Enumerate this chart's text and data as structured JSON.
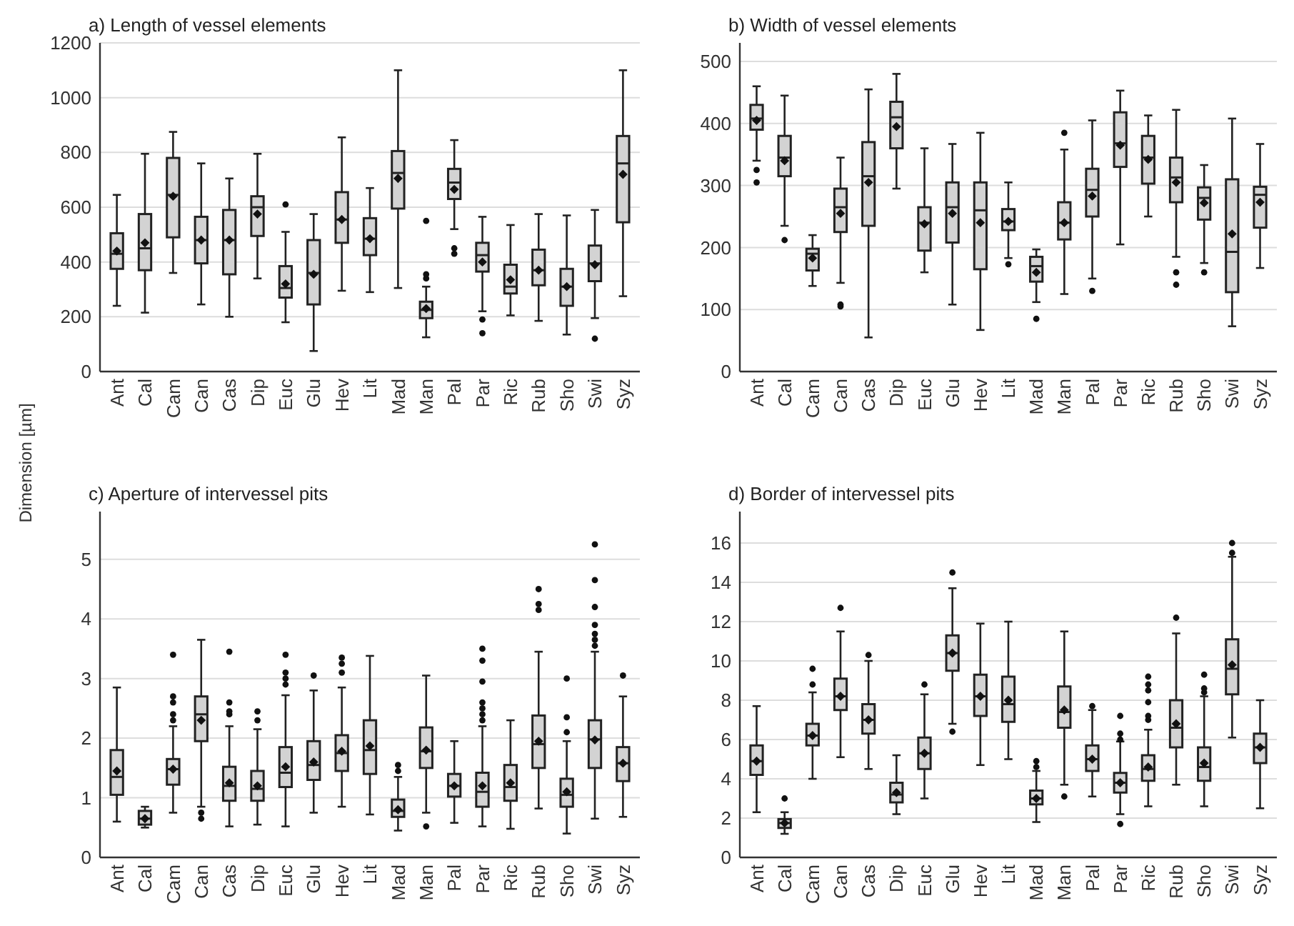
{
  "chart_data": [
    {
      "type": "box",
      "title": "a) Length of vessel elements",
      "ylabel": "Dimension [µm]",
      "categories": [
        "Ant",
        "Cal",
        "Cam",
        "Can",
        "Cas",
        "Dip",
        "Euc",
        "Glu",
        "Hev",
        "Lit",
        "Mad",
        "Man",
        "Pal",
        "Par",
        "Ric",
        "Rub",
        "Sho",
        "Swi",
        "Syz"
      ],
      "ylim": [
        0,
        1200
      ],
      "yticks": [
        0,
        200,
        400,
        600,
        800,
        1000,
        1200
      ],
      "grid": "y",
      "color": "#d3d3d3",
      "boxes": [
        {
          "low": 240,
          "q1": 375,
          "median": 430,
          "q3": 505,
          "high": 645,
          "mean": 440
        },
        {
          "low": 215,
          "q1": 370,
          "median": 450,
          "q3": 575,
          "high": 795,
          "mean": 470
        },
        {
          "low": 360,
          "q1": 490,
          "median": 645,
          "q3": 780,
          "high": 875,
          "mean": 640
        },
        {
          "low": 245,
          "q1": 395,
          "median": 480,
          "q3": 565,
          "high": 760,
          "mean": 480
        },
        {
          "low": 200,
          "q1": 355,
          "median": 480,
          "q3": 590,
          "high": 705,
          "mean": 480
        },
        {
          "low": 340,
          "q1": 495,
          "median": 600,
          "q3": 640,
          "high": 795,
          "mean": 575
        },
        {
          "low": 180,
          "q1": 270,
          "median": 305,
          "q3": 385,
          "high": 510,
          "mean": 320,
          "outliers": [
            610
          ]
        },
        {
          "low": 75,
          "q1": 245,
          "median": 360,
          "q3": 480,
          "high": 575,
          "mean": 355
        },
        {
          "low": 295,
          "q1": 470,
          "median": 555,
          "q3": 655,
          "high": 855,
          "mean": 555
        },
        {
          "low": 290,
          "q1": 425,
          "median": 485,
          "q3": 560,
          "high": 670,
          "mean": 485
        },
        {
          "low": 305,
          "q1": 595,
          "median": 725,
          "q3": 805,
          "high": 1100,
          "mean": 705
        },
        {
          "low": 125,
          "q1": 195,
          "median": 225,
          "q3": 255,
          "high": 310,
          "mean": 230,
          "outliers": [
            340,
            355,
            550
          ]
        },
        {
          "low": 520,
          "q1": 630,
          "median": 690,
          "q3": 740,
          "high": 845,
          "mean": 665,
          "outliers": [
            430,
            450
          ]
        },
        {
          "low": 220,
          "q1": 365,
          "median": 425,
          "q3": 470,
          "high": 565,
          "mean": 400,
          "outliers": [
            140,
            190
          ]
        },
        {
          "low": 205,
          "q1": 285,
          "median": 310,
          "q3": 390,
          "high": 535,
          "mean": 335
        },
        {
          "low": 185,
          "q1": 315,
          "median": 370,
          "q3": 445,
          "high": 575,
          "mean": 370
        },
        {
          "low": 135,
          "q1": 240,
          "median": 310,
          "q3": 375,
          "high": 570,
          "mean": 310
        },
        {
          "low": 195,
          "q1": 330,
          "median": 395,
          "q3": 460,
          "high": 590,
          "mean": 390,
          "outliers": [
            120
          ]
        },
        {
          "low": 275,
          "q1": 545,
          "median": 760,
          "q3": 860,
          "high": 1100,
          "mean": 720
        }
      ]
    },
    {
      "type": "box",
      "title": "b) Width of vessel elements",
      "categories": [
        "Ant",
        "Cal",
        "Cam",
        "Can",
        "Cas",
        "Dip",
        "Euc",
        "Glu",
        "Hev",
        "Lit",
        "Mad",
        "Man",
        "Pal",
        "Par",
        "Ric",
        "Rub",
        "Sho",
        "Swi",
        "Syz"
      ],
      "ylim": [
        0,
        530
      ],
      "yticks": [
        0,
        100,
        200,
        300,
        400,
        500
      ],
      "grid": "y",
      "color": "#d3d3d3",
      "boxes": [
        {
          "low": 340,
          "q1": 390,
          "median": 408,
          "q3": 430,
          "high": 460,
          "mean": 405,
          "outliers": [
            305,
            325
          ]
        },
        {
          "low": 235,
          "q1": 315,
          "median": 345,
          "q3": 380,
          "high": 445,
          "mean": 340,
          "outliers": [
            212
          ]
        },
        {
          "low": 138,
          "q1": 163,
          "median": 190,
          "q3": 198,
          "high": 220,
          "mean": 183
        },
        {
          "low": 143,
          "q1": 225,
          "median": 265,
          "q3": 295,
          "high": 345,
          "mean": 255,
          "outliers": [
            105,
            108
          ]
        },
        {
          "low": 55,
          "q1": 235,
          "median": 315,
          "q3": 370,
          "high": 455,
          "mean": 305
        },
        {
          "low": 295,
          "q1": 360,
          "median": 410,
          "q3": 435,
          "high": 480,
          "mean": 395
        },
        {
          "low": 160,
          "q1": 195,
          "median": 240,
          "q3": 265,
          "high": 360,
          "mean": 238
        },
        {
          "low": 108,
          "q1": 208,
          "median": 265,
          "q3": 305,
          "high": 367,
          "mean": 255
        },
        {
          "low": 67,
          "q1": 165,
          "median": 260,
          "q3": 305,
          "high": 385,
          "mean": 240
        },
        {
          "low": 183,
          "q1": 228,
          "median": 242,
          "q3": 262,
          "high": 305,
          "mean": 242,
          "outliers": [
            173
          ]
        },
        {
          "low": 112,
          "q1": 145,
          "median": 170,
          "q3": 185,
          "high": 197,
          "mean": 160,
          "outliers": [
            85
          ]
        },
        {
          "low": 125,
          "q1": 213,
          "median": 240,
          "q3": 273,
          "high": 358,
          "mean": 240,
          "outliers": [
            385
          ]
        },
        {
          "low": 150,
          "q1": 250,
          "median": 293,
          "q3": 327,
          "high": 405,
          "mean": 283,
          "outliers": [
            130
          ]
        },
        {
          "low": 205,
          "q1": 330,
          "median": 368,
          "q3": 418,
          "high": 453,
          "mean": 365
        },
        {
          "low": 250,
          "q1": 303,
          "median": 345,
          "q3": 380,
          "high": 413,
          "mean": 342
        },
        {
          "low": 185,
          "q1": 273,
          "median": 313,
          "q3": 345,
          "high": 422,
          "mean": 305,
          "outliers": [
            140,
            160
          ]
        },
        {
          "low": 175,
          "q1": 245,
          "median": 280,
          "q3": 297,
          "high": 333,
          "mean": 272,
          "outliers": [
            160
          ]
        },
        {
          "low": 73,
          "q1": 128,
          "median": 193,
          "q3": 310,
          "high": 408,
          "mean": 222
        },
        {
          "low": 167,
          "q1": 232,
          "median": 285,
          "q3": 298,
          "high": 367,
          "mean": 273
        }
      ]
    },
    {
      "type": "box",
      "title": "c) Aperture of intervessel pits",
      "categories": [
        "Ant",
        "Cal",
        "Cam",
        "Can",
        "Cas",
        "Dip",
        "Euc",
        "Glu",
        "Hev",
        "Lit",
        "Mad",
        "Man",
        "Pal",
        "Par",
        "Ric",
        "Rub",
        "Sho",
        "Swi",
        "Syz"
      ],
      "ylim": [
        0,
        5.8
      ],
      "yticks": [
        0,
        1,
        2,
        3,
        4,
        5
      ],
      "grid": "y",
      "color": "#d3d3d3",
      "boxes": [
        {
          "low": 0.6,
          "q1": 1.05,
          "median": 1.35,
          "q3": 1.8,
          "high": 2.85,
          "mean": 1.45
        },
        {
          "low": 0.5,
          "q1": 0.55,
          "median": 0.65,
          "q3": 0.78,
          "high": 0.85,
          "mean": 0.65
        },
        {
          "low": 0.75,
          "q1": 1.22,
          "median": 1.48,
          "q3": 1.65,
          "high": 2.2,
          "mean": 1.48,
          "outliers": [
            2.3,
            2.4,
            2.6,
            2.7,
            3.4
          ]
        },
        {
          "low": 0.85,
          "q1": 1.95,
          "median": 2.4,
          "q3": 2.7,
          "high": 3.65,
          "mean": 2.3,
          "outliers": [
            0.65,
            0.75
          ]
        },
        {
          "low": 0.52,
          "q1": 0.95,
          "median": 1.2,
          "q3": 1.52,
          "high": 2.2,
          "mean": 1.25,
          "outliers": [
            2.4,
            2.45,
            2.6,
            3.45
          ]
        },
        {
          "low": 0.55,
          "q1": 0.95,
          "median": 1.15,
          "q3": 1.45,
          "high": 2.15,
          "mean": 1.2,
          "outliers": [
            2.3,
            2.45
          ]
        },
        {
          "low": 0.52,
          "q1": 1.18,
          "median": 1.42,
          "q3": 1.85,
          "high": 2.72,
          "mean": 1.52,
          "outliers": [
            2.9,
            3.0,
            3.1,
            3.4
          ]
        },
        {
          "low": 0.75,
          "q1": 1.3,
          "median": 1.55,
          "q3": 1.95,
          "high": 2.8,
          "mean": 1.6,
          "outliers": [
            3.05
          ]
        },
        {
          "low": 0.85,
          "q1": 1.45,
          "median": 1.75,
          "q3": 2.05,
          "high": 2.85,
          "mean": 1.78,
          "outliers": [
            3.1,
            3.25,
            3.35
          ]
        },
        {
          "low": 0.72,
          "q1": 1.4,
          "median": 1.8,
          "q3": 2.3,
          "high": 3.38,
          "mean": 1.87
        },
        {
          "low": 0.45,
          "q1": 0.68,
          "median": 0.78,
          "q3": 0.97,
          "high": 1.35,
          "mean": 0.8,
          "outliers": [
            1.45,
            1.55
          ]
        },
        {
          "low": 0.75,
          "q1": 1.5,
          "median": 1.78,
          "q3": 2.18,
          "high": 3.05,
          "mean": 1.8,
          "outliers": [
            0.52
          ]
        },
        {
          "low": 0.58,
          "q1": 1.02,
          "median": 1.2,
          "q3": 1.4,
          "high": 1.95,
          "mean": 1.2
        },
        {
          "low": 0.52,
          "q1": 0.85,
          "median": 1.1,
          "q3": 1.42,
          "high": 2.2,
          "mean": 1.2,
          "outliers": [
            2.3,
            2.4,
            2.5,
            2.6,
            2.95,
            3.3,
            3.5
          ]
        },
        {
          "low": 0.48,
          "q1": 0.95,
          "median": 1.18,
          "q3": 1.55,
          "high": 2.3,
          "mean": 1.25
        },
        {
          "low": 0.82,
          "q1": 1.5,
          "median": 1.9,
          "q3": 2.38,
          "high": 3.45,
          "mean": 1.95,
          "outliers": [
            4.15,
            4.25,
            4.5
          ]
        },
        {
          "low": 0.4,
          "q1": 0.85,
          "median": 1.05,
          "q3": 1.32,
          "high": 1.95,
          "mean": 1.1,
          "outliers": [
            2.1,
            2.35,
            3.0
          ]
        },
        {
          "low": 0.65,
          "q1": 1.5,
          "median": 1.98,
          "q3": 2.3,
          "high": 3.45,
          "mean": 1.97,
          "outliers": [
            3.55,
            3.65,
            3.75,
            3.9,
            4.2,
            4.65,
            5.25
          ]
        },
        {
          "low": 0.68,
          "q1": 1.28,
          "median": 1.58,
          "q3": 1.85,
          "high": 2.7,
          "mean": 1.58,
          "outliers": [
            3.05
          ]
        }
      ]
    },
    {
      "type": "box",
      "title": "d) Border of intervessel pits",
      "categories": [
        "Ant",
        "Cal",
        "Cam",
        "Can",
        "Cas",
        "Dip",
        "Euc",
        "Glu",
        "Hev",
        "Lit",
        "Mad",
        "Man",
        "Pal",
        "Par",
        "Ric",
        "Rub",
        "Sho",
        "Swi",
        "Syz"
      ],
      "ylim": [
        0,
        17.6
      ],
      "yticks": [
        0,
        2,
        4,
        6,
        8,
        10,
        12,
        14,
        16
      ],
      "grid": "y",
      "color": "#d3d3d3",
      "boxes": [
        {
          "low": 2.3,
          "q1": 4.2,
          "median": 4.9,
          "q3": 5.7,
          "high": 7.7,
          "mean": 4.9
        },
        {
          "low": 1.2,
          "q1": 1.5,
          "median": 1.75,
          "q3": 1.95,
          "high": 2.3,
          "mean": 1.75,
          "outliers": [
            3.0
          ]
        },
        {
          "low": 4.0,
          "q1": 5.7,
          "median": 6.2,
          "q3": 6.8,
          "high": 8.4,
          "mean": 6.2,
          "outliers": [
            8.8,
            9.6
          ]
        },
        {
          "low": 5.1,
          "q1": 7.5,
          "median": 8.2,
          "q3": 9.1,
          "high": 11.5,
          "mean": 8.2,
          "outliers": [
            12.7
          ]
        },
        {
          "low": 4.5,
          "q1": 6.3,
          "median": 7.0,
          "q3": 7.8,
          "high": 10.0,
          "mean": 7.0,
          "outliers": [
            10.3
          ]
        },
        {
          "low": 2.2,
          "q1": 2.8,
          "median": 3.2,
          "q3": 3.8,
          "high": 5.2,
          "mean": 3.3
        },
        {
          "low": 3.0,
          "q1": 4.5,
          "median": 5.3,
          "q3": 6.1,
          "high": 8.3,
          "mean": 5.3,
          "outliers": [
            8.8
          ]
        },
        {
          "low": 6.8,
          "q1": 9.5,
          "median": 10.4,
          "q3": 11.3,
          "high": 13.7,
          "mean": 10.4,
          "outliers": [
            6.4,
            14.5
          ]
        },
        {
          "low": 4.7,
          "q1": 7.2,
          "median": 8.2,
          "q3": 9.3,
          "high": 11.9,
          "mean": 8.2
        },
        {
          "low": 5.0,
          "q1": 6.9,
          "median": 7.8,
          "q3": 9.2,
          "high": 12.0,
          "mean": 8.0
        },
        {
          "low": 1.8,
          "q1": 2.7,
          "median": 3.0,
          "q3": 3.4,
          "high": 4.4,
          "mean": 3.0,
          "outliers": [
            4.6,
            4.9
          ]
        },
        {
          "low": 3.7,
          "q1": 6.6,
          "median": 7.4,
          "q3": 8.7,
          "high": 11.5,
          "mean": 7.5,
          "outliers": [
            3.1
          ]
        },
        {
          "low": 3.1,
          "q1": 4.4,
          "median": 5.0,
          "q3": 5.7,
          "high": 7.5,
          "mean": 5.0,
          "outliers": [
            7.7
          ]
        },
        {
          "low": 2.2,
          "q1": 3.3,
          "median": 3.8,
          "q3": 4.3,
          "high": 5.9,
          "mean": 3.8,
          "outliers": [
            1.7,
            6.0,
            6.3,
            7.2
          ]
        },
        {
          "low": 2.6,
          "q1": 3.9,
          "median": 4.5,
          "q3": 5.2,
          "high": 6.5,
          "mean": 4.6,
          "outliers": [
            7.0,
            7.2,
            7.9,
            8.5,
            8.8,
            9.2
          ]
        },
        {
          "low": 3.7,
          "q1": 5.6,
          "median": 6.6,
          "q3": 8.0,
          "high": 11.4,
          "mean": 6.8,
          "outliers": [
            12.2
          ]
        },
        {
          "low": 2.6,
          "q1": 3.9,
          "median": 4.6,
          "q3": 5.6,
          "high": 8.2,
          "mean": 4.8,
          "outliers": [
            8.4,
            8.6,
            9.3
          ]
        },
        {
          "low": 6.1,
          "q1": 8.3,
          "median": 9.6,
          "q3": 11.1,
          "high": 15.3,
          "mean": 9.8,
          "outliers": [
            15.5,
            16.0
          ]
        },
        {
          "low": 2.5,
          "q1": 4.8,
          "median": 5.6,
          "q3": 6.3,
          "high": 8.0,
          "mean": 5.6
        }
      ]
    }
  ]
}
